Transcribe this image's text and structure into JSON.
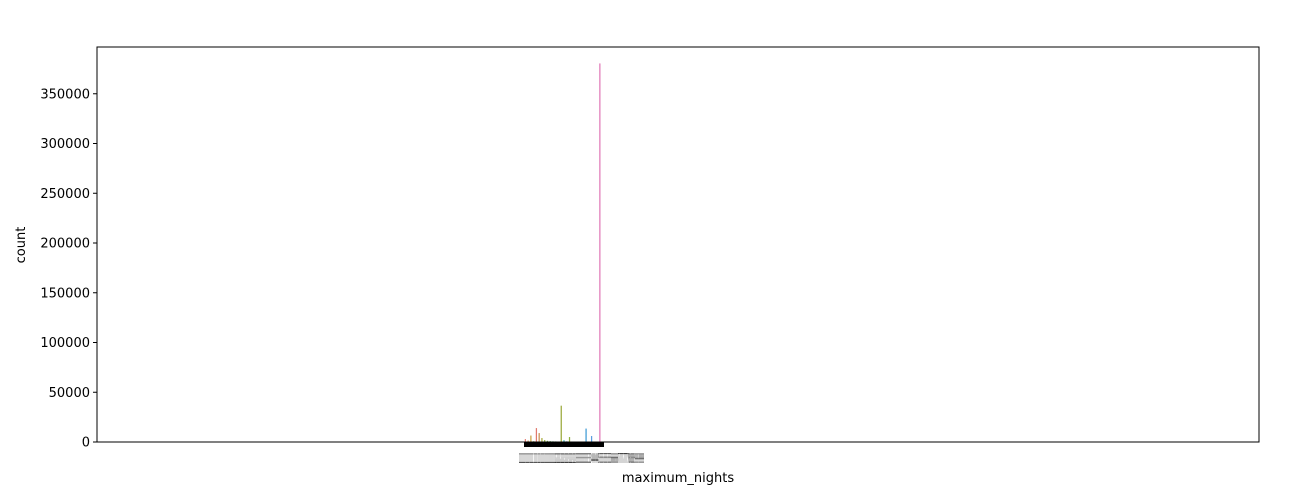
{
  "chart_data": {
    "type": "bar",
    "xlabel": "maximum_nights",
    "ylabel": "count",
    "ylim": [
      0,
      397000
    ],
    "y_ticks": [
      0,
      50000,
      100000,
      150000,
      200000,
      250000,
      300000,
      350000
    ],
    "y_tick_labels": [
      "0",
      "50000",
      "100000",
      "150000",
      "200000",
      "250000",
      "300000",
      "350000"
    ],
    "x_tick_overlap_text": "1111111111111111111111111111111111122222222222222222222333333333333333444444455555555555566666667777777777888888999999999",
    "grid": false,
    "legend": "none",
    "bars": [
      {
        "value": 3000,
        "color": "#e8857a"
      },
      {
        "value": 1500,
        "color": "#d99a5c"
      },
      {
        "value": 6500,
        "color": "#c9a040"
      },
      {
        "value": 800,
        "color": "#b4a840"
      },
      {
        "value": 14000,
        "color": "#e07a6e"
      },
      {
        "value": 9000,
        "color": "#c98f55"
      },
      {
        "value": 4000,
        "color": "#a8aa3e"
      },
      {
        "value": 2000,
        "color": "#8fb040"
      },
      {
        "value": 1200,
        "color": "#73b24a"
      },
      {
        "value": 900,
        "color": "#5bb45c"
      },
      {
        "value": 700,
        "color": "#48b46f"
      },
      {
        "value": 600,
        "color": "#3db483"
      },
      {
        "value": 500,
        "color": "#36b399"
      },
      {
        "value": 36500,
        "color": "#9aa83a"
      },
      {
        "value": 1800,
        "color": "#34b1ae"
      },
      {
        "value": 700,
        "color": "#35aec2"
      },
      {
        "value": 5000,
        "color": "#8fb040"
      },
      {
        "value": 500,
        "color": "#3aa8d4"
      },
      {
        "value": 400,
        "color": "#48a1e0"
      },
      {
        "value": 350,
        "color": "#5b98e8"
      },
      {
        "value": 300,
        "color": "#728dec"
      },
      {
        "value": 300,
        "color": "#8a84ec"
      },
      {
        "value": 13500,
        "color": "#3d9ad6"
      },
      {
        "value": 400,
        "color": "#a07ae8"
      },
      {
        "value": 6000,
        "color": "#5a9ee0"
      },
      {
        "value": 300,
        "color": "#b574e0"
      },
      {
        "value": 300,
        "color": "#c86ed4"
      },
      {
        "value": 380500,
        "color": "#e07ab8"
      },
      {
        "value": 300,
        "color": "#e078a8"
      }
    ]
  }
}
